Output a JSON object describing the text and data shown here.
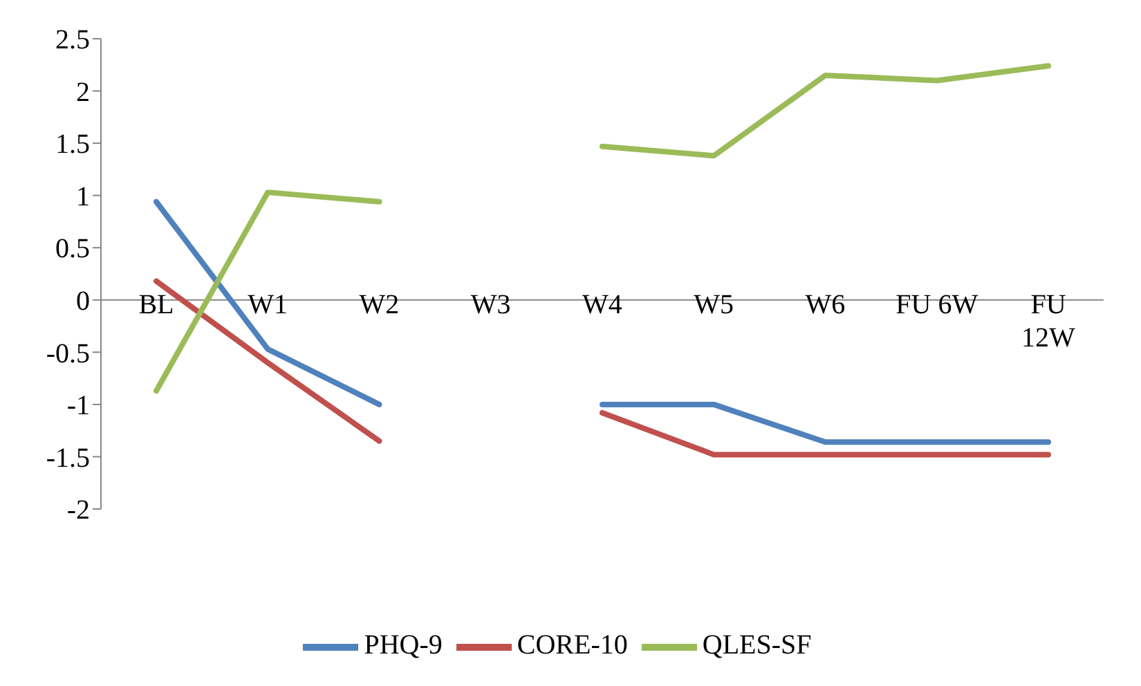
{
  "chart_data": {
    "type": "line",
    "categories": [
      "BL",
      "W1",
      "W2",
      "W3",
      "W4",
      "W5",
      "W6",
      "FU 6W",
      "FU 12W"
    ],
    "series": [
      {
        "name": "PHQ-9",
        "color": "#4f81bd",
        "values": [
          0.94,
          -0.47,
          -1.0,
          null,
          -1.0,
          -1.0,
          -1.36,
          -1.36,
          -1.36
        ]
      },
      {
        "name": "CORE-10",
        "color": "#c0504d",
        "values": [
          0.18,
          -0.6,
          -1.35,
          null,
          -1.08,
          -1.48,
          -1.48,
          -1.48,
          -1.48
        ]
      },
      {
        "name": "QLES-SF",
        "color": "#9bbb59",
        "values": [
          -0.87,
          1.03,
          0.94,
          null,
          1.47,
          1.38,
          2.15,
          2.1,
          2.24
        ]
      }
    ],
    "ylim": [
      -2,
      2.5
    ],
    "yticks": [
      -2,
      -1.5,
      -1,
      -0.5,
      0,
      0.5,
      1,
      1.5,
      2,
      2.5
    ],
    "grid": false,
    "legend": "bottom",
    "marker": "none",
    "line_style": "solid"
  }
}
